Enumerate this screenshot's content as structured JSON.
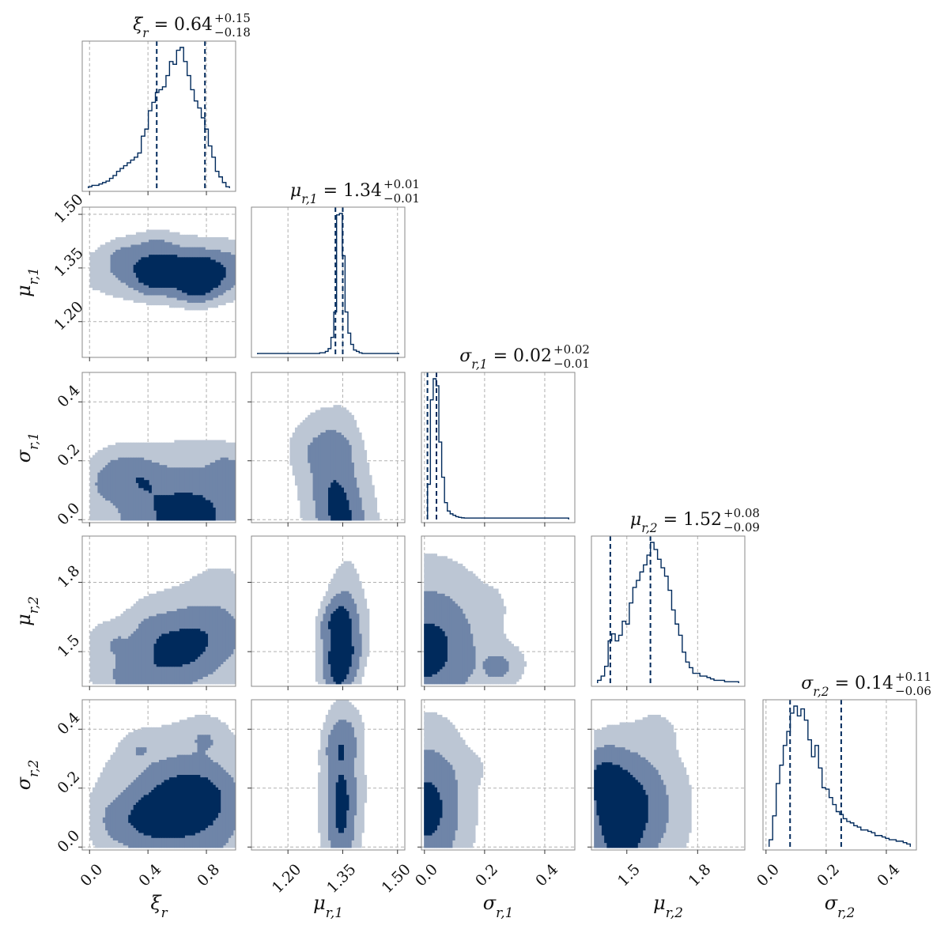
{
  "chart_data": {
    "type": "corner",
    "params": [
      {
        "symbol": "ξ",
        "sub": "r",
        "range": [
          -0.05,
          1.0
        ],
        "ticks": [
          0.0,
          0.4,
          0.8
        ],
        "tick_labels": [
          "0.0",
          "0.4",
          "0.8"
        ],
        "median": "0.64",
        "plus": "+0.15",
        "minus": "−0.18",
        "q16": 0.46,
        "q84": 0.79
      },
      {
        "symbol": "μ",
        "sub": "r,1",
        "range": [
          1.1,
          1.52
        ],
        "ticks": [
          1.2,
          1.35,
          1.5
        ],
        "tick_labels": [
          "1.20",
          "1.35",
          "1.50"
        ],
        "median": "1.34",
        "plus": "+0.01",
        "minus": "−0.01",
        "q16": 1.33,
        "q84": 1.35
      },
      {
        "symbol": "σ",
        "sub": "r,1",
        "range": [
          -0.01,
          0.5
        ],
        "ticks": [
          0.0,
          0.2,
          0.4
        ],
        "tick_labels": [
          "0.0",
          "0.2",
          "0.4"
        ],
        "median": "0.02",
        "plus": "+0.02",
        "minus": "−0.01",
        "q16": 0.01,
        "q84": 0.04
      },
      {
        "symbol": "μ",
        "sub": "r,2",
        "range": [
          1.35,
          2.0
        ],
        "ticks": [
          1.5,
          1.8
        ],
        "tick_labels": [
          "1.5",
          "1.8"
        ],
        "median": "1.52",
        "plus": "+0.08",
        "minus": "−0.09",
        "q16": 1.43,
        "q84": 1.6
      },
      {
        "symbol": "σ",
        "sub": "r,2",
        "range": [
          -0.01,
          0.5
        ],
        "ticks": [
          0.0,
          0.2,
          0.4
        ],
        "tick_labels": [
          "0.0",
          "0.2",
          "0.4"
        ],
        "median": "0.14",
        "plus": "+0.11",
        "minus": "−0.06",
        "q16": 0.08,
        "q84": 0.25
      }
    ],
    "marginals": [
      [
        0.01,
        0.02,
        0.02,
        0.03,
        0.04,
        0.05,
        0.07,
        0.09,
        0.12,
        0.14,
        0.16,
        0.18,
        0.2,
        0.22,
        0.25,
        0.37,
        0.42,
        0.55,
        0.61,
        0.68,
        0.7,
        0.72,
        0.8,
        0.9,
        0.88,
        0.98,
        1.0,
        0.9,
        0.8,
        0.7,
        0.62,
        0.57,
        0.5,
        0.42,
        0.3,
        0.22,
        0.12,
        0.08,
        0.04,
        0.01
      ],
      [
        0.005,
        0.005,
        0.005,
        0.005,
        0.005,
        0.005,
        0.005,
        0.005,
        0.005,
        0.005,
        0.005,
        0.005,
        0.005,
        0.005,
        0.005,
        0.005,
        0.005,
        0.005,
        0.005,
        0.005,
        0.005,
        0.005,
        0.01,
        0.01,
        0.02,
        0.04,
        0.12,
        0.3,
        0.99,
        1.0,
        0.7,
        0.3,
        0.15,
        0.07,
        0.03,
        0.02,
        0.01,
        0.005,
        0.005,
        0.005,
        0.005,
        0.005,
        0.005,
        0.005,
        0.005,
        0.005,
        0.005,
        0.005,
        0.005,
        0.005
      ],
      [
        0.25,
        0.85,
        1.0,
        0.95,
        0.55,
        0.3,
        0.12,
        0.06,
        0.04,
        0.03,
        0.02,
        0.015,
        0.012,
        0.01,
        0.01,
        0.01,
        0.01,
        0.01,
        0.01,
        0.01,
        0.01,
        0.01,
        0.01,
        0.01,
        0.01,
        0.01,
        0.01,
        0.01,
        0.01,
        0.01,
        0.01,
        0.01,
        0.01,
        0.01,
        0.01,
        0.01,
        0.01,
        0.01,
        0.01,
        0.01,
        0.01,
        0.01,
        0.01,
        0.01,
        0.01,
        0.01,
        0.01,
        0.01,
        0.01,
        0.01
      ],
      [
        0.02,
        0.05,
        0.12,
        0.3,
        0.35,
        0.3,
        0.34,
        0.44,
        0.42,
        0.57,
        0.68,
        0.73,
        0.79,
        0.84,
        0.91,
        1.0,
        0.95,
        0.88,
        0.82,
        0.76,
        0.66,
        0.52,
        0.42,
        0.34,
        0.22,
        0.15,
        0.11,
        0.07,
        0.07,
        0.05,
        0.05,
        0.04,
        0.03,
        0.02,
        0.02,
        0.02,
        0.01,
        0.01,
        0.01,
        0.01
      ],
      [
        0.05,
        0.22,
        0.45,
        0.58,
        0.72,
        0.82,
        0.95,
        1.0,
        0.93,
        0.98,
        0.9,
        0.76,
        0.64,
        0.72,
        0.56,
        0.42,
        0.41,
        0.35,
        0.3,
        0.25,
        0.23,
        0.2,
        0.18,
        0.17,
        0.15,
        0.14,
        0.12,
        0.12,
        0.11,
        0.1,
        0.08,
        0.08,
        0.07,
        0.06,
        0.05,
        0.05,
        0.04,
        0.04,
        0.03,
        0.02
      ]
    ],
    "pairs": [
      {
        "row": 1,
        "col": 0,
        "mode": [
          0.66,
          1.345
        ],
        "sd": [
          0.36,
          0.045
        ],
        "rho": 0.05,
        "bounds": [
          [
            0.0,
            1.0
          ],
          [
            1.1,
            1.52
          ]
        ]
      },
      {
        "row": 2,
        "col": 0,
        "mode": [
          0.66,
          0.02
        ],
        "sd": [
          0.35,
          0.12
        ],
        "rho": 0.0,
        "bounds": [
          [
            0.0,
            1.0
          ],
          [
            0.0,
            0.5
          ]
        ]
      },
      {
        "row": 2,
        "col": 1,
        "mode": [
          1.34,
          0.03
        ],
        "sd": [
          0.055,
          0.16
        ],
        "rho": -0.35,
        "bounds": [
          [
            1.1,
            1.48
          ],
          [
            0.0,
            0.5
          ]
        ]
      },
      {
        "row": 3,
        "col": 0,
        "mode": [
          0.64,
          1.52
        ],
        "sd": [
          0.3,
          0.14
        ],
        "rho": 0.35,
        "bounds": [
          [
            0.0,
            1.0
          ],
          [
            1.36,
            1.98
          ]
        ]
      },
      {
        "row": 3,
        "col": 1,
        "mode": [
          1.345,
          1.52
        ],
        "sd": [
          0.03,
          0.18
        ],
        "rho": 0.25,
        "bounds": [
          [
            1.1,
            1.46
          ],
          [
            1.36,
            1.98
          ]
        ]
      },
      {
        "row": 3,
        "col": 2,
        "mode": [
          0.01,
          1.51
        ],
        "sd": [
          0.12,
          0.2
        ],
        "rho": 0.0,
        "bounds": [
          [
            0.0,
            0.5
          ],
          [
            1.36,
            1.98
          ]
        ]
      },
      {
        "row": 4,
        "col": 0,
        "mode": [
          0.64,
          0.13
        ],
        "sd": [
          0.3,
          0.14
        ],
        "rho": 0.0,
        "bounds": [
          [
            0.0,
            1.0
          ],
          [
            0.0,
            0.5
          ]
        ]
      },
      {
        "row": 4,
        "col": 1,
        "mode": [
          1.345,
          0.14
        ],
        "sd": [
          0.03,
          0.16
        ],
        "rho": 0.0,
        "bounds": [
          [
            1.1,
            1.46
          ],
          [
            0.0,
            0.5
          ]
        ]
      },
      {
        "row": 4,
        "col": 2,
        "mode": [
          0.01,
          0.13
        ],
        "sd": [
          0.08,
          0.16
        ],
        "rho": 0.0,
        "bounds": [
          [
            0.0,
            0.5
          ],
          [
            0.0,
            0.5
          ]
        ]
      },
      {
        "row": 4,
        "col": 3,
        "mode": [
          1.51,
          0.13
        ],
        "sd": [
          0.13,
          0.14
        ],
        "rho": 0.0,
        "bounds": [
          [
            1.36,
            1.98
          ],
          [
            0.0,
            0.5
          ]
        ]
      }
    ],
    "grid": true,
    "colors": {
      "line": "#002a5c",
      "outer": "#bcc6d4",
      "middle": "#6f85a8",
      "inner": "#002a5c",
      "grid": "#b0b0b0",
      "frame": "#888888"
    }
  }
}
